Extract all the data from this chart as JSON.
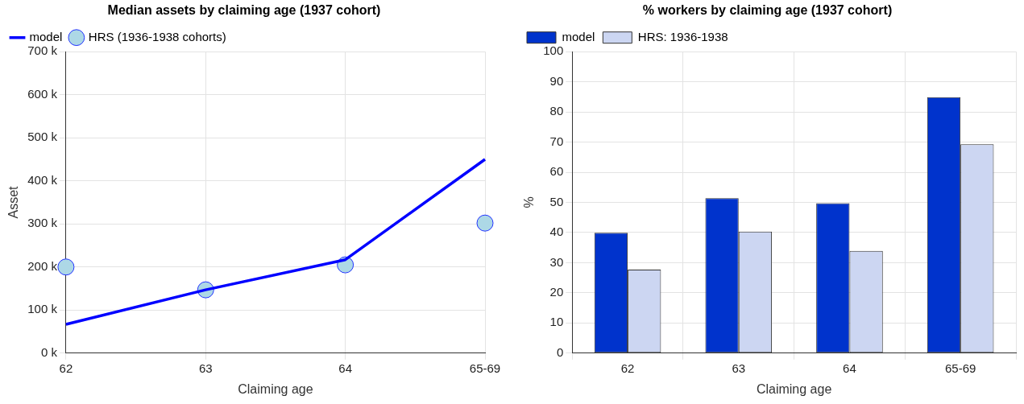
{
  "chart_data": [
    {
      "type": "line",
      "title": "Median assets by claiming age (1937 cohort)",
      "xlabel": "Claiming age",
      "ylabel": "Asset",
      "categories": [
        "62",
        "63",
        "64",
        "65-69"
      ],
      "series": [
        {
          "name": "model",
          "color": "#0000ff",
          "values": [
            67000,
            147000,
            217000,
            450000
          ]
        },
        {
          "name": "HRS (1936-1938 cohorts)",
          "type": "scatter",
          "marker": "circle",
          "color": "#add8e6",
          "values": [
            200000,
            147000,
            205000,
            302000
          ]
        }
      ],
      "ylim": [
        0,
        700000
      ],
      "yticks": [
        {
          "value": 0,
          "label": "0 k"
        },
        {
          "value": 100000,
          "label": "100 k"
        },
        {
          "value": 200000,
          "label": "200 k"
        },
        {
          "value": 300000,
          "label": "300 k"
        },
        {
          "value": 400000,
          "label": "400 k"
        },
        {
          "value": 500000,
          "label": "500 k"
        },
        {
          "value": 600000,
          "label": "600 k"
        },
        {
          "value": 700000,
          "label": "700 k"
        }
      ],
      "grid": true,
      "legend": "top left"
    },
    {
      "type": "bar",
      "title": "% workers by claiming age (1937 cohort)",
      "xlabel": "Claiming age",
      "ylabel": "%",
      "categories": [
        "62",
        "63",
        "64",
        "65-69"
      ],
      "series": [
        {
          "name": "model",
          "color": "#0033cc",
          "values": [
            39.9,
            51.4,
            49.7,
            84.9
          ]
        },
        {
          "name": "HRS: 1936-1938",
          "color": "#ccd6f2",
          "values": [
            27.7,
            40.3,
            33.9,
            69.3
          ]
        }
      ],
      "ylim": [
        0,
        100
      ],
      "yticks": [
        0,
        10,
        20,
        30,
        40,
        50,
        60,
        70,
        80,
        90,
        100
      ],
      "grid": true,
      "legend": "top left"
    }
  ]
}
